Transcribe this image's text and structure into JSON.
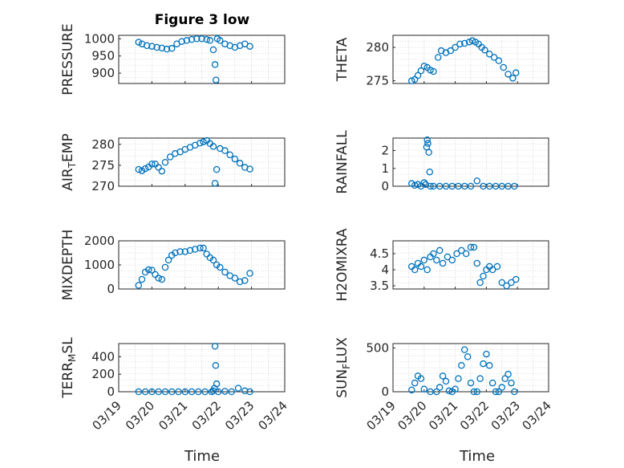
{
  "figure": {
    "title": "Figure 3 low",
    "xlabel": "Time"
  },
  "colors": {
    "marker": "#0072BD",
    "axis": "#262626",
    "grid": "#bdbdbd"
  },
  "chart_data": [
    {
      "type": "scatter",
      "ylabel": "PRESSURE",
      "xlim": [
        0,
        5
      ],
      "ylim": [
        870,
        1010
      ],
      "yticks": [
        900,
        950,
        1000
      ],
      "x": [
        0.6,
        0.7,
        0.85,
        1.0,
        1.15,
        1.3,
        1.45,
        1.6,
        1.75,
        1.9,
        2.05,
        2.2,
        2.35,
        2.5,
        2.65,
        2.75,
        2.85,
        2.9,
        2.93,
        2.97,
        3.05,
        3.2,
        3.35,
        3.5,
        3.65,
        3.8,
        3.95
      ],
      "y": [
        990,
        985,
        980,
        978,
        975,
        973,
        970,
        972,
        985,
        992,
        995,
        998,
        1000,
        1000,
        998,
        995,
        968,
        925,
        880,
        1000,
        995,
        985,
        980,
        975,
        980,
        985,
        978
      ]
    },
    {
      "type": "scatter",
      "ylabel": "THETA",
      "xlim": [
        0,
        5
      ],
      "ylim": [
        274.6,
        281.8
      ],
      "yticks": [
        275,
        280
      ],
      "x": [
        0.6,
        0.7,
        0.8,
        0.9,
        1.0,
        1.1,
        1.2,
        1.3,
        1.45,
        1.55,
        1.7,
        1.85,
        2.0,
        2.15,
        2.3,
        2.45,
        2.55,
        2.65,
        2.75,
        2.85,
        2.95,
        3.1,
        3.25,
        3.4,
        3.55,
        3.7,
        3.85,
        3.95
      ],
      "y": [
        275,
        275.2,
        275.8,
        276.5,
        277.2,
        277,
        276.6,
        276.4,
        278.5,
        279.5,
        279.2,
        279.5,
        280,
        280.5,
        280.6,
        280.8,
        281,
        280.8,
        280.5,
        280,
        279.6,
        279,
        278.5,
        278,
        277,
        276,
        275.4,
        276.2
      ]
    },
    {
      "type": "scatter",
      "ylabel": "AIR_TEMP",
      "xlim": [
        0,
        5
      ],
      "ylim": [
        270,
        281.5
      ],
      "yticks": [
        270,
        275,
        280
      ],
      "x": [
        0.6,
        0.7,
        0.8,
        0.9,
        1.0,
        1.1,
        1.2,
        1.3,
        1.4,
        1.55,
        1.7,
        1.85,
        2.0,
        2.15,
        2.3,
        2.45,
        2.55,
        2.65,
        2.75,
        2.85,
        2.9,
        2.95,
        3.05,
        3.2,
        3.35,
        3.5,
        3.65,
        3.8,
        3.95
      ],
      "y": [
        274,
        273.7,
        274.2,
        274.6,
        275.3,
        275.3,
        274.5,
        273.6,
        275.7,
        277,
        277.8,
        278.2,
        278.8,
        279.3,
        279.8,
        280.3,
        280.6,
        280.9,
        280.2,
        279.5,
        270.7,
        274,
        279,
        278.5,
        277.5,
        276.5,
        275.5,
        274.5,
        274.1
      ]
    },
    {
      "type": "scatter",
      "ylabel": "RAINFALL",
      "xlim": [
        0,
        5
      ],
      "ylim": [
        0,
        2.7
      ],
      "yticks": [
        0,
        1,
        2
      ],
      "x": [
        0.6,
        0.7,
        0.8,
        0.9,
        1.0,
        1.05,
        1.08,
        1.1,
        1.12,
        1.15,
        1.18,
        1.2,
        1.3,
        1.5,
        1.7,
        1.9,
        2.1,
        2.3,
        2.5,
        2.7,
        2.9,
        3.1,
        3.3,
        3.5,
        3.7,
        3.9
      ],
      "y": [
        0.15,
        0.05,
        0.1,
        0,
        0.2,
        0.1,
        2.2,
        2.6,
        2.4,
        1.9,
        0.8,
        0,
        0,
        0,
        0,
        0,
        0,
        0,
        0,
        0.3,
        0,
        0,
        0,
        0,
        0,
        0
      ]
    },
    {
      "type": "scatter",
      "ylabel": "MIXDEPTH",
      "xlim": [
        0,
        5
      ],
      "ylim": [
        0,
        2000
      ],
      "yticks": [
        0,
        1000,
        2000
      ],
      "x": [
        0.6,
        0.7,
        0.8,
        0.9,
        1.0,
        1.1,
        1.2,
        1.3,
        1.4,
        1.5,
        1.6,
        1.7,
        1.85,
        2.0,
        2.15,
        2.3,
        2.45,
        2.55,
        2.65,
        2.75,
        2.85,
        2.95,
        3.05,
        3.2,
        3.35,
        3.5,
        3.65,
        3.8,
        3.95
      ],
      "y": [
        150,
        400,
        700,
        800,
        780,
        600,
        450,
        400,
        900,
        1200,
        1400,
        1500,
        1550,
        1550,
        1600,
        1650,
        1700,
        1700,
        1450,
        1300,
        1200,
        1000,
        900,
        700,
        550,
        450,
        300,
        350,
        650
      ]
    },
    {
      "type": "scatter",
      "ylabel": "H2OMIXRA",
      "xlim": [
        0,
        5
      ],
      "ylim": [
        3.4,
        4.9
      ],
      "yticks": [
        3.5,
        4,
        4.5
      ],
      "x": [
        0.6,
        0.7,
        0.8,
        0.9,
        1.0,
        1.1,
        1.2,
        1.3,
        1.4,
        1.5,
        1.6,
        1.75,
        1.9,
        2.05,
        2.2,
        2.35,
        2.5,
        2.6,
        2.7,
        2.8,
        2.9,
        3.0,
        3.1,
        3.2,
        3.35,
        3.5,
        3.65,
        3.8,
        3.95
      ],
      "y": [
        4.1,
        4,
        4.2,
        4.1,
        4.3,
        4,
        4.4,
        4.5,
        4.3,
        4.6,
        4.2,
        4.4,
        4.3,
        4.5,
        4.6,
        4.5,
        4.7,
        4.7,
        4.2,
        3.6,
        3.8,
        4,
        4.1,
        4,
        4.1,
        3.6,
        3.5,
        3.6,
        3.7
      ]
    },
    {
      "type": "scatter",
      "ylabel": "TERR_MSL",
      "xlim": [
        0,
        5
      ],
      "ylim": [
        0,
        550
      ],
      "yticks": [
        0,
        200,
        400
      ],
      "x": [
        0.6,
        0.8,
        1.0,
        1.2,
        1.4,
        1.6,
        1.8,
        2.0,
        2.2,
        2.4,
        2.6,
        2.8,
        2.85,
        2.88,
        2.9,
        2.92,
        2.95,
        3.0,
        3.2,
        3.4,
        3.6,
        3.8,
        3.95
      ],
      "y": [
        0,
        0,
        0,
        0,
        0,
        0,
        0,
        0,
        0,
        0,
        0,
        0,
        10,
        40,
        520,
        300,
        90,
        0,
        5,
        0,
        40,
        10,
        0
      ]
    },
    {
      "type": "scatter",
      "ylabel": "SUN_FLUX",
      "xlim": [
        0,
        5
      ],
      "ylim": [
        0,
        550
      ],
      "yticks": [
        0,
        500
      ],
      "x": [
        0.6,
        0.7,
        0.8,
        0.9,
        1.0,
        1.2,
        1.4,
        1.5,
        1.6,
        1.7,
        1.8,
        1.9,
        2.0,
        2.1,
        2.2,
        2.3,
        2.4,
        2.5,
        2.6,
        2.7,
        2.8,
        2.9,
        3.0,
        3.1,
        3.2,
        3.3,
        3.4,
        3.5,
        3.6,
        3.7,
        3.8,
        3.9
      ],
      "y": [
        20,
        100,
        180,
        150,
        30,
        0,
        0,
        50,
        180,
        120,
        10,
        0,
        30,
        150,
        300,
        480,
        400,
        100,
        0,
        0,
        150,
        320,
        430,
        300,
        100,
        0,
        0,
        50,
        150,
        200,
        100,
        0
      ]
    }
  ],
  "xticks": [
    "03/19",
    "03/20",
    "03/21",
    "03/22",
    "03/23",
    "03/24"
  ]
}
